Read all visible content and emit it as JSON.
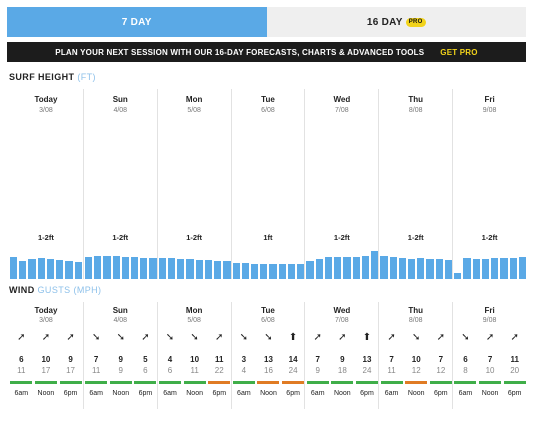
{
  "tabs": [
    {
      "label": "7 DAY",
      "active": true
    },
    {
      "label": "16 DAY",
      "active": false,
      "badge": "PRO"
    }
  ],
  "banner": {
    "text": "PLAN YOUR NEXT SESSION WITH OUR 16-DAY FORECASTS, CHARTS & ADVANCED TOOLS",
    "cta": "GET PRO"
  },
  "surf": {
    "title": "SURF HEIGHT",
    "unit": "(FT)",
    "days": [
      {
        "name": "Today",
        "date": "3/08",
        "height": "1-2ft",
        "bars": [
          0.46,
          0.38,
          0.42,
          0.43,
          0.42,
          0.4,
          0.37,
          0.36
        ]
      },
      {
        "name": "Sun",
        "date": "4/08",
        "height": "1-2ft",
        "bars": [
          0.46,
          0.48,
          0.47,
          0.47,
          0.46,
          0.45,
          0.44,
          0.44
        ]
      },
      {
        "name": "Mon",
        "date": "5/08",
        "height": "1-2ft",
        "bars": [
          0.44,
          0.43,
          0.42,
          0.41,
          0.4,
          0.39,
          0.38,
          0.37
        ]
      },
      {
        "name": "Tue",
        "date": "6/08",
        "height": "1ft",
        "bars": [
          0.34,
          0.33,
          0.32,
          0.32,
          0.31,
          0.31,
          0.31,
          0.31
        ]
      },
      {
        "name": "Wed",
        "date": "7/08",
        "height": "1-2ft",
        "bars": [
          0.37,
          0.42,
          0.45,
          0.46,
          0.46,
          0.45,
          0.47,
          0.58
        ]
      },
      {
        "name": "Thu",
        "date": "8/08",
        "height": "1-2ft",
        "bars": [
          0.47,
          0.45,
          0.44,
          0.42,
          0.43,
          0.42,
          0.41,
          0.4
        ]
      },
      {
        "name": "Fri",
        "date": "9/08",
        "height": "1-2ft",
        "bars": [
          0.13,
          0.43,
          0.42,
          0.41,
          0.43,
          0.44,
          0.44,
          0.45
        ]
      }
    ]
  },
  "wind": {
    "title": "WIND",
    "gusts": "GUSTS",
    "unit": "(MPH)",
    "days": [
      {
        "name": "Today",
        "date": "3/08",
        "slots": [
          {
            "time": "6am",
            "speed": "6",
            "gust": "11",
            "arrow": "➚",
            "color": "#3fae49"
          },
          {
            "time": "Noon",
            "speed": "10",
            "gust": "17",
            "arrow": "➚",
            "color": "#3fae49"
          },
          {
            "time": "6pm",
            "speed": "9",
            "gust": "17",
            "arrow": "➚",
            "color": "#3fae49"
          }
        ]
      },
      {
        "name": "Sun",
        "date": "4/08",
        "slots": [
          {
            "time": "6am",
            "speed": "7",
            "gust": "11",
            "arrow": "➘",
            "color": "#3fae49"
          },
          {
            "time": "Noon",
            "speed": "9",
            "gust": "9",
            "arrow": "➘",
            "color": "#3fae49"
          },
          {
            "time": "6pm",
            "speed": "5",
            "gust": "6",
            "arrow": "➚",
            "color": "#3fae49"
          }
        ]
      },
      {
        "name": "Mon",
        "date": "5/08",
        "slots": [
          {
            "time": "6am",
            "speed": "4",
            "gust": "6",
            "arrow": "➘",
            "color": "#3fae49"
          },
          {
            "time": "Noon",
            "speed": "10",
            "gust": "11",
            "arrow": "➘",
            "color": "#3fae49"
          },
          {
            "time": "6pm",
            "speed": "11",
            "gust": "22",
            "arrow": "➚",
            "color": "#e07b24"
          }
        ]
      },
      {
        "name": "Tue",
        "date": "6/08",
        "slots": [
          {
            "time": "6am",
            "speed": "3",
            "gust": "4",
            "arrow": "➘",
            "color": "#3fae49"
          },
          {
            "time": "Noon",
            "speed": "13",
            "gust": "16",
            "arrow": "➘",
            "color": "#e07b24"
          },
          {
            "time": "6pm",
            "speed": "14",
            "gust": "24",
            "arrow": "⬆",
            "color": "#e07b24"
          }
        ]
      },
      {
        "name": "Wed",
        "date": "7/08",
        "slots": [
          {
            "time": "6am",
            "speed": "7",
            "gust": "9",
            "arrow": "➚",
            "color": "#3fae49"
          },
          {
            "time": "Noon",
            "speed": "9",
            "gust": "18",
            "arrow": "➚",
            "color": "#3fae49"
          },
          {
            "time": "6pm",
            "speed": "13",
            "gust": "24",
            "arrow": "⬆",
            "color": "#3fae49"
          }
        ]
      },
      {
        "name": "Thu",
        "date": "8/08",
        "slots": [
          {
            "time": "6am",
            "speed": "7",
            "gust": "11",
            "arrow": "➚",
            "color": "#3fae49"
          },
          {
            "time": "Noon",
            "speed": "10",
            "gust": "12",
            "arrow": "➘",
            "color": "#e07b24"
          },
          {
            "time": "6pm",
            "speed": "7",
            "gust": "12",
            "arrow": "➚",
            "color": "#3fae49"
          }
        ]
      },
      {
        "name": "Fri",
        "date": "9/08",
        "slots": [
          {
            "time": "6am",
            "speed": "6",
            "gust": "8",
            "arrow": "➘",
            "color": "#3fae49"
          },
          {
            "time": "Noon",
            "speed": "7",
            "gust": "10",
            "arrow": "➚",
            "color": "#3fae49"
          },
          {
            "time": "6pm",
            "speed": "11",
            "gust": "20",
            "arrow": "➚",
            "color": "#3fae49"
          }
        ]
      }
    ]
  }
}
